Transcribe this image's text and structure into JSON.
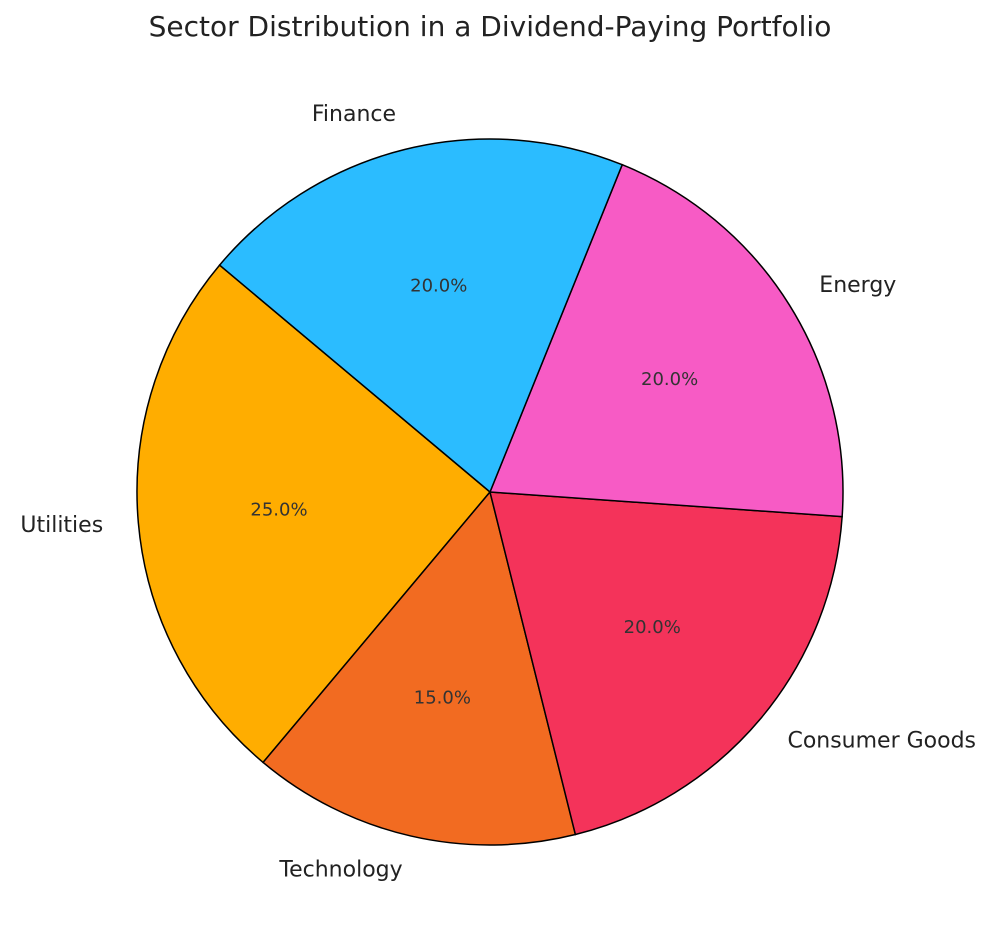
{
  "chart_data": {
    "type": "pie",
    "title": "Sector Distribution in a Dividend-Paying Portfolio",
    "categories": [
      "Utilities",
      "Technology",
      "Consumer Goods",
      "Energy",
      "Finance"
    ],
    "values": [
      25,
      15,
      20,
      20,
      20
    ],
    "value_labels": [
      "25.0%",
      "15.0%",
      "20.0%",
      "20.0%",
      "20.0%"
    ],
    "colors": [
      "#ffad00",
      "#f26b21",
      "#f4335a",
      "#f75bc5",
      "#2bbcff"
    ],
    "startangle": 140
  }
}
